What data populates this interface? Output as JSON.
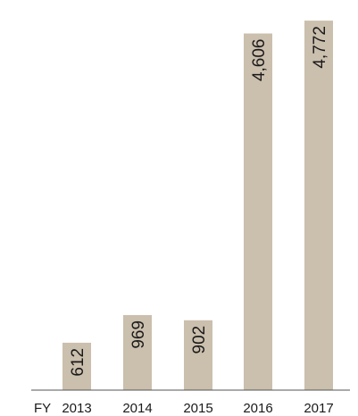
{
  "chart_data": {
    "type": "bar",
    "axis_prefix": "FY",
    "categories": [
      "2013",
      "2014",
      "2015",
      "2016",
      "2017"
    ],
    "values": [
      612,
      969,
      902,
      4606,
      4772
    ],
    "value_labels": [
      "612",
      "969",
      "902",
      "4,606",
      "4,772"
    ],
    "ylim": [
      0,
      4900
    ],
    "grid": false,
    "bar_color": "#cbbfad",
    "axis_color": "#555555"
  }
}
